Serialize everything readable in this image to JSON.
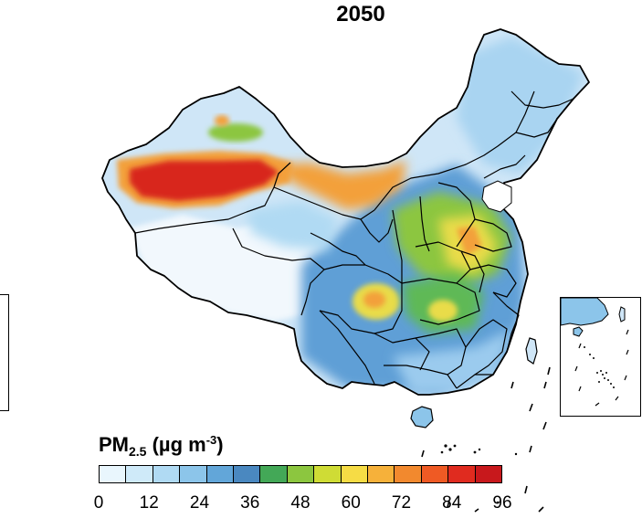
{
  "title": "2050",
  "legend": {
    "label_main": "PM",
    "label_sub": "2.5",
    "label_unit_open": " (µg m",
    "label_unit_sup": "-3",
    "label_unit_close": ")",
    "ticks": [
      "0",
      "12",
      "24",
      "36",
      "48",
      "60",
      "72",
      "84",
      "96"
    ],
    "colors": [
      "#e9f6fd",
      "#cfeaf9",
      "#b0daf3",
      "#8cc5ea",
      "#62a6d9",
      "#4a88c0",
      "#43a857",
      "#8cc63f",
      "#cfdc35",
      "#f6dc45",
      "#f6b13a",
      "#f2892e",
      "#ef5a24",
      "#e02b1f",
      "#c8181c"
    ]
  },
  "map": {
    "region": "China",
    "colors": {
      "ocean": "#ffffff",
      "border": "#000000",
      "tibet": "#f2f8fd",
      "light": "#cfe6f7",
      "mid": "#9bcbee",
      "blue": "#5f9fd6",
      "deep": "#4479b8",
      "green": "#5fb957",
      "yellow": "#e9dc48",
      "orange": "#f3a03a",
      "red": "#d8251c"
    }
  }
}
